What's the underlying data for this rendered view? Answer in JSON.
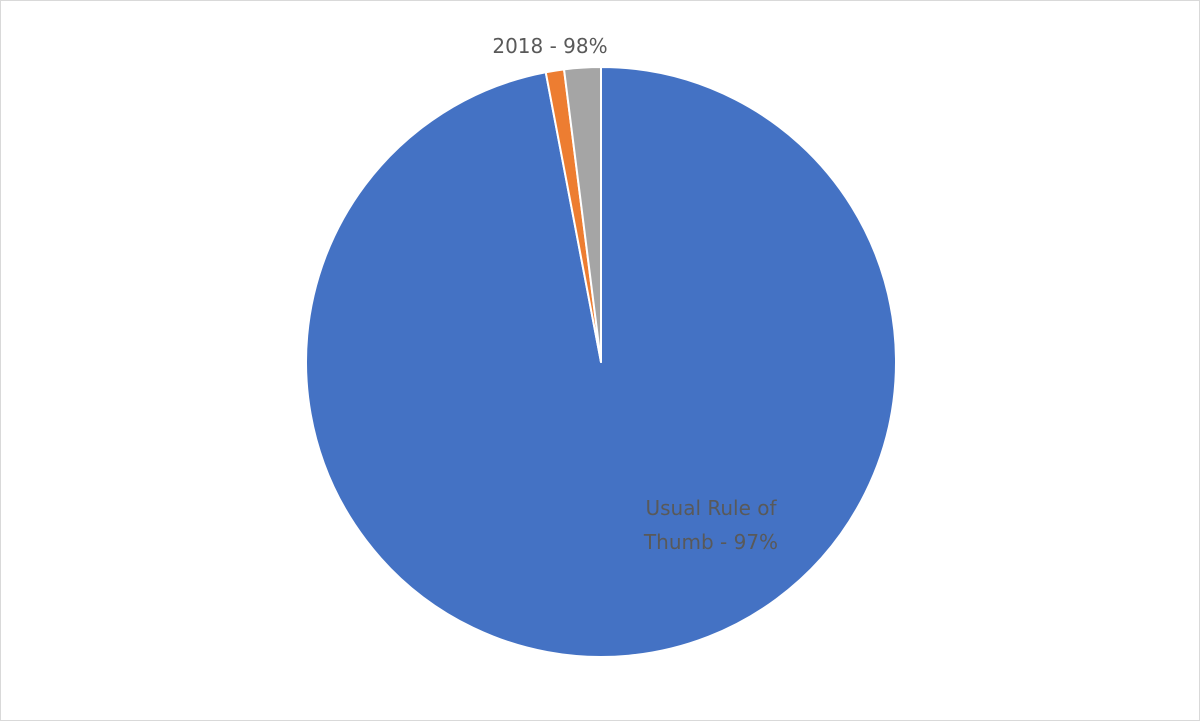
{
  "chart_data": {
    "type": "pie",
    "categories": [
      "Usual Rule of Thumb - 97%",
      "2018 - 98%",
      null
    ],
    "values": [
      97,
      1,
      2
    ],
    "colors": [
      "#4472c4",
      "#ed7d31",
      "#a5a5a5"
    ]
  }
}
